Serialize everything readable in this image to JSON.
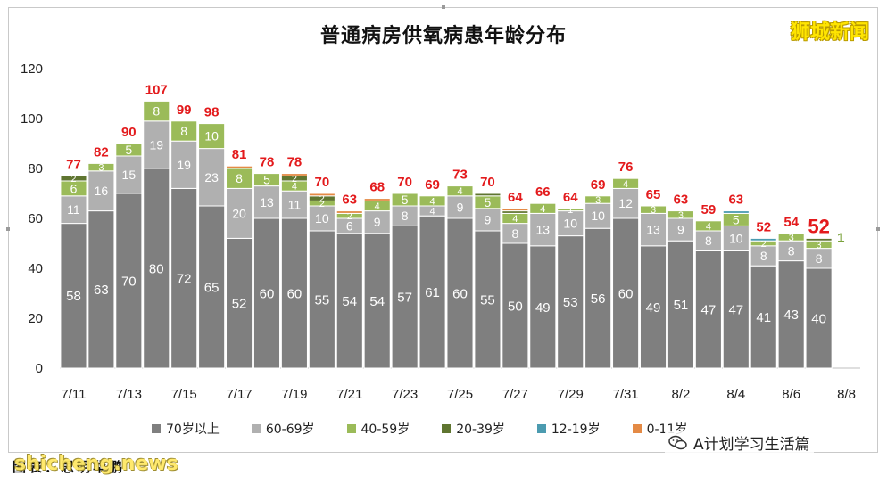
{
  "title": "普通病房供氧病患年龄分布",
  "brand": "狮城新闻",
  "caption": "图表：思明华鹏",
  "watermark": "shicheng.news",
  "wechat_label": "A计划学习生活篇",
  "chart_data": {
    "type": "bar",
    "stacked": true,
    "title": "普通病房供氧病患年龄分布",
    "ylim": [
      0,
      120
    ],
    "yticks": [
      0,
      20,
      40,
      60,
      80,
      100,
      120
    ],
    "legend_position": "bottom",
    "categories": [
      "7/11",
      "7/12",
      "7/13",
      "7/14",
      "7/15",
      "7/16",
      "7/17",
      "7/18",
      "7/19",
      "7/20",
      "7/21",
      "7/22",
      "7/23",
      "7/24",
      "7/25",
      "7/26",
      "7/27",
      "7/28",
      "7/29",
      "7/30",
      "7/31",
      "8/1",
      "8/2",
      "8/3",
      "8/4",
      "8/5",
      "8/6",
      "8/7",
      "8/8"
    ],
    "xtick_labels": [
      "7/11",
      "",
      "7/13",
      "",
      "7/15",
      "",
      "7/17",
      "",
      "7/19",
      "",
      "7/21",
      "",
      "7/23",
      "",
      "7/25",
      "",
      "7/27",
      "",
      "7/29",
      "",
      "7/31",
      "",
      "8/2",
      "",
      "8/4",
      "",
      "8/6",
      "",
      "8/8"
    ],
    "series": [
      {
        "name": "70岁以上",
        "color": "#7f7f7f",
        "values": [
          58,
          63,
          70,
          80,
          72,
          65,
          52,
          60,
          60,
          55,
          54,
          54,
          57,
          61,
          60,
          55,
          50,
          49,
          53,
          56,
          60,
          49,
          51,
          47,
          47,
          41,
          43,
          40,
          0
        ]
      },
      {
        "name": "60-69岁",
        "color": "#b0b0b0",
        "values": [
          11,
          16,
          15,
          19,
          19,
          23,
          20,
          13,
          11,
          10,
          6,
          9,
          8,
          4,
          9,
          9,
          8,
          13,
          10,
          10,
          12,
          13,
          9,
          8,
          10,
          8,
          8,
          8,
          0
        ]
      },
      {
        "name": "40-59岁",
        "color": "#9bbb59",
        "values": [
          6,
          3,
          5,
          8,
          8,
          10,
          8,
          5,
          4,
          2,
          2,
          4,
          5,
          4,
          4,
          5,
          4,
          4,
          1,
          3,
          4,
          3,
          3,
          4,
          5,
          2,
          3,
          3,
          0
        ]
      },
      {
        "name": "20-39岁",
        "color": "#5f7530",
        "values": [
          2,
          0,
          0,
          0,
          0,
          0,
          0,
          0,
          2,
          2,
          0,
          0,
          0,
          0,
          0,
          1,
          1,
          0,
          0,
          0,
          0,
          0,
          0,
          0,
          0,
          0,
          0,
          1,
          0
        ]
      },
      {
        "name": "12-19岁",
        "color": "#4b9bb0",
        "values": [
          0,
          0,
          0,
          0,
          0,
          0,
          0,
          0,
          0,
          0,
          0,
          0,
          0,
          0,
          0,
          0,
          0,
          0,
          0,
          0,
          0,
          0,
          0,
          0,
          1,
          1,
          0,
          0,
          0
        ]
      },
      {
        "name": "0-11岁",
        "color": "#e48a45",
        "values": [
          0,
          0,
          0,
          0,
          0,
          0,
          1,
          0,
          1,
          1,
          1,
          1,
          0,
          0,
          0,
          0,
          1,
          0,
          0,
          0,
          0,
          0,
          0,
          0,
          0,
          0,
          0,
          0,
          0
        ]
      }
    ],
    "segment_labels": {
      "70岁以上": [
        "58",
        "63",
        "70",
        "80",
        "72",
        "65",
        "52",
        "60",
        "60",
        "55",
        "54",
        "54",
        "57",
        "61",
        "60",
        "55",
        "50",
        "49",
        "53",
        "56",
        "60",
        "49",
        "51",
        "47",
        "47",
        "41",
        "43",
        "40",
        ""
      ],
      "60-69岁": [
        "11",
        "16",
        "15",
        "19",
        "19",
        "23",
        "20",
        "13",
        "11",
        "10",
        "6",
        "9",
        "8",
        "4",
        "9",
        "9",
        "8",
        "13",
        "10",
        "10",
        "12",
        "13",
        "9",
        "8",
        "10",
        "8",
        "8",
        "8",
        ""
      ],
      "40-59岁": [
        "6",
        "3",
        "5",
        "8",
        "8",
        "10",
        "8",
        "5",
        "4",
        "2",
        "2",
        "4",
        "5",
        "4",
        "4",
        "5",
        "4",
        "4",
        "1",
        "3",
        "4",
        "3",
        "3",
        "4",
        "5",
        "2",
        "3",
        "3",
        ""
      ],
      "20-39岁": [
        "2",
        "",
        "",
        "",
        "",
        "",
        "",
        "",
        "2",
        "2",
        "",
        "",
        "",
        "",
        "",
        "",
        "",
        "",
        "",
        "",
        "",
        "",
        "",
        "",
        "",
        "",
        "",
        "",
        ""
      ]
    },
    "totals": [
      "77",
      "82",
      "90",
      "107",
      "99",
      "98",
      "81",
      "78",
      "78",
      "70",
      "63",
      "68",
      "70",
      "69",
      "73",
      "70",
      "64",
      "66",
      "64",
      "69",
      "76",
      "65",
      "63",
      "59",
      "63",
      "52",
      "54",
      "52",
      ""
    ],
    "extra_labels": [
      {
        "category": "8/7",
        "text": "1",
        "color": "#7aa23c"
      }
    ]
  }
}
